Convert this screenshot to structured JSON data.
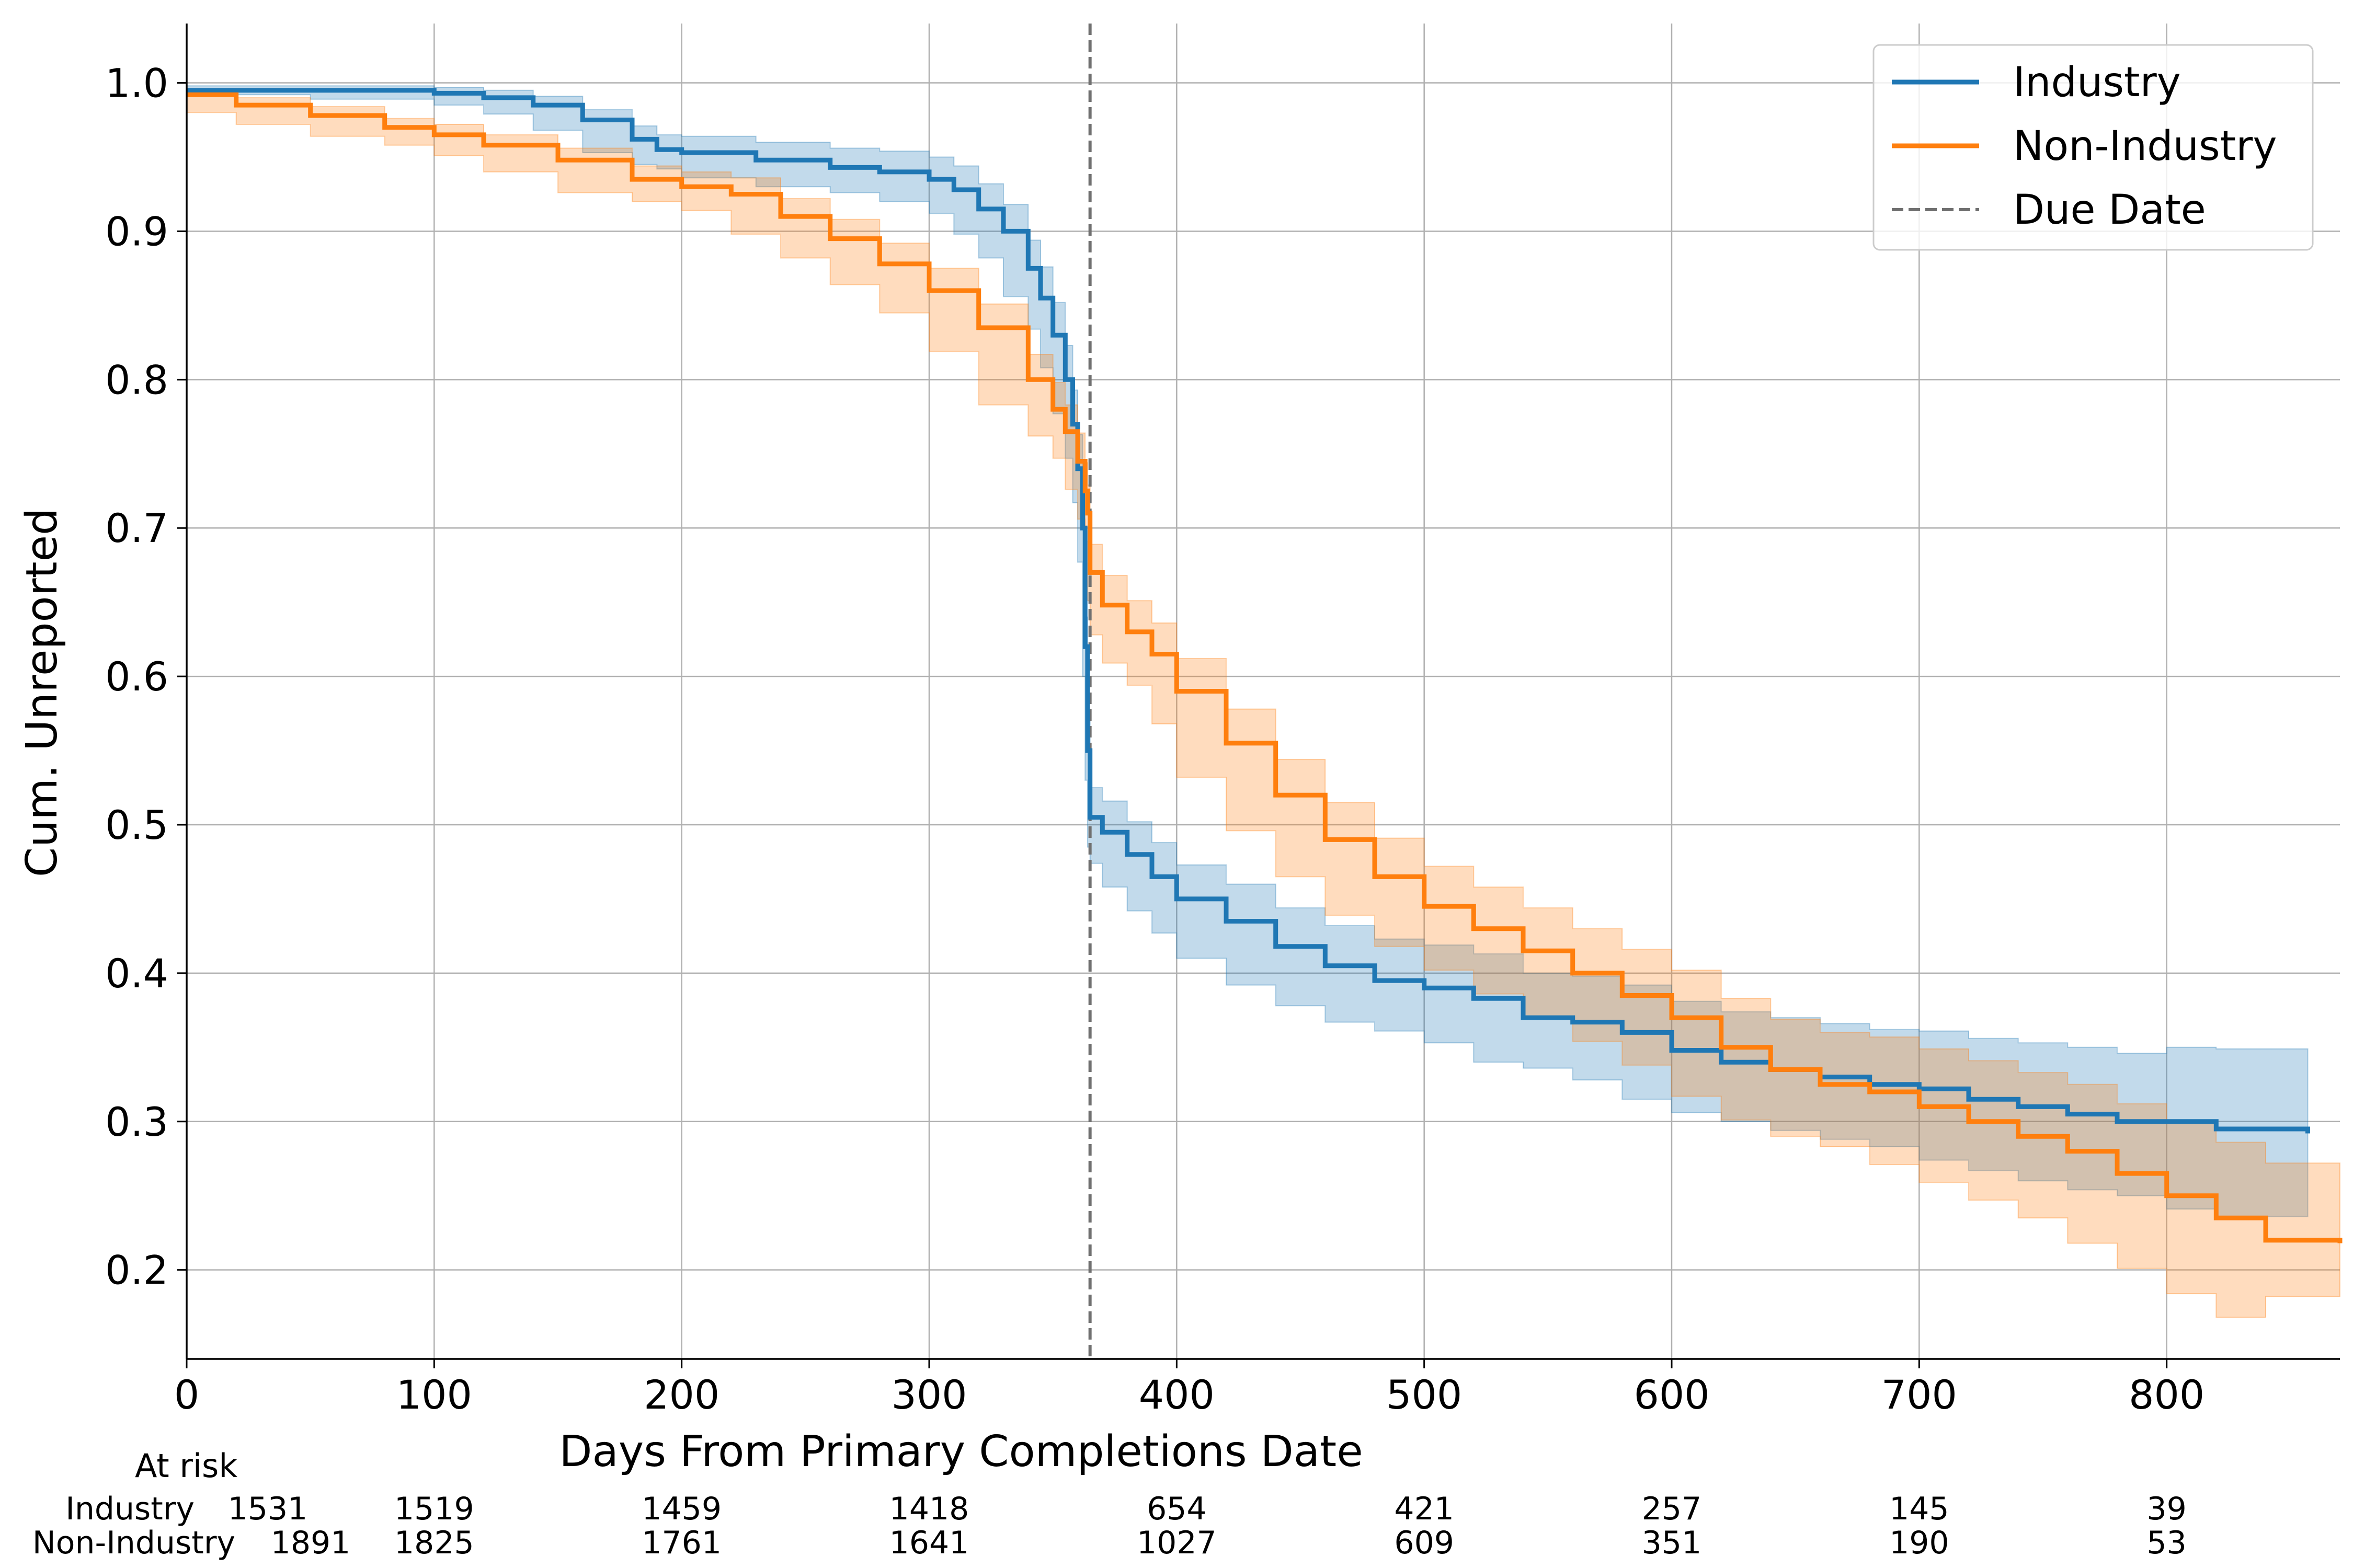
{
  "chart_data": {
    "type": "line",
    "title": "",
    "xlabel": "Days From Primary Completions Date",
    "ylabel": "Cum. Unreported",
    "xlim": [
      0,
      870
    ],
    "ylim": [
      0.14,
      1.04
    ],
    "x_ticks": [
      0,
      100,
      200,
      300,
      400,
      500,
      600,
      700,
      800
    ],
    "y_ticks": [
      0.2,
      0.3,
      0.4,
      0.5,
      0.6,
      0.7,
      0.8,
      0.9,
      1.0
    ],
    "x_tick_labels": [
      "0",
      "100",
      "200",
      "300",
      "400",
      "500",
      "600",
      "700",
      "800"
    ],
    "y_tick_labels": [
      "0.2",
      "0.3",
      "0.4",
      "0.5",
      "0.6",
      "0.7",
      "0.8",
      "0.9",
      "1.0"
    ],
    "grid": true,
    "legend_position": "top-right",
    "series": [
      {
        "name": "Industry",
        "color": "#1f77b4",
        "x": [
          0,
          50,
          100,
          120,
          140,
          160,
          180,
          190,
          200,
          230,
          260,
          280,
          300,
          310,
          320,
          330,
          340,
          345,
          350,
          355,
          358,
          360,
          362,
          363,
          364,
          365,
          370,
          380,
          390,
          400,
          420,
          440,
          460,
          480,
          500,
          520,
          540,
          560,
          580,
          600,
          620,
          640,
          660,
          680,
          700,
          720,
          740,
          760,
          780,
          800,
          820,
          857
        ],
        "y": [
          0.995,
          0.995,
          0.993,
          0.99,
          0.985,
          0.975,
          0.962,
          0.955,
          0.953,
          0.948,
          0.943,
          0.94,
          0.935,
          0.928,
          0.915,
          0.9,
          0.875,
          0.855,
          0.83,
          0.8,
          0.77,
          0.74,
          0.7,
          0.62,
          0.55,
          0.505,
          0.495,
          0.48,
          0.465,
          0.45,
          0.435,
          0.418,
          0.405,
          0.395,
          0.39,
          0.383,
          0.37,
          0.367,
          0.36,
          0.348,
          0.34,
          0.335,
          0.33,
          0.325,
          0.322,
          0.315,
          0.31,
          0.305,
          0.3,
          0.3,
          0.295,
          0.292
        ],
        "ci_lower": [
          0.992,
          0.992,
          0.989,
          0.985,
          0.979,
          0.968,
          0.953,
          0.945,
          0.942,
          0.936,
          0.93,
          0.926,
          0.92,
          0.912,
          0.898,
          0.882,
          0.856,
          0.834,
          0.808,
          0.777,
          0.747,
          0.717,
          0.677,
          0.6,
          0.53,
          0.485,
          0.474,
          0.458,
          0.442,
          0.427,
          0.41,
          0.392,
          0.378,
          0.367,
          0.361,
          0.353,
          0.34,
          0.336,
          0.328,
          0.315,
          0.306,
          0.3,
          0.294,
          0.288,
          0.283,
          0.274,
          0.267,
          0.26,
          0.254,
          0.25,
          0.241,
          0.236
        ],
        "ci_upper": [
          0.998,
          0.998,
          0.997,
          0.995,
          0.991,
          0.982,
          0.971,
          0.965,
          0.964,
          0.96,
          0.956,
          0.954,
          0.95,
          0.944,
          0.932,
          0.918,
          0.894,
          0.876,
          0.852,
          0.823,
          0.793,
          0.763,
          0.723,
          0.64,
          0.57,
          0.525,
          0.516,
          0.502,
          0.488,
          0.473,
          0.46,
          0.444,
          0.432,
          0.423,
          0.419,
          0.413,
          0.4,
          0.398,
          0.392,
          0.381,
          0.374,
          0.37,
          0.366,
          0.362,
          0.361,
          0.356,
          0.353,
          0.35,
          0.346,
          0.35,
          0.349,
          0.348
        ]
      },
      {
        "name": "Non-Industry",
        "color": "#ff7f0e",
        "x": [
          0,
          20,
          50,
          80,
          100,
          120,
          150,
          180,
          200,
          220,
          240,
          260,
          280,
          300,
          320,
          340,
          350,
          355,
          360,
          363,
          364,
          365,
          370,
          380,
          390,
          400,
          420,
          440,
          460,
          480,
          500,
          520,
          540,
          560,
          580,
          600,
          620,
          640,
          660,
          680,
          700,
          720,
          740,
          760,
          780,
          800,
          820,
          840,
          870
        ],
        "y": [
          0.992,
          0.985,
          0.978,
          0.97,
          0.965,
          0.958,
          0.948,
          0.935,
          0.93,
          0.925,
          0.91,
          0.895,
          0.878,
          0.86,
          0.835,
          0.8,
          0.78,
          0.765,
          0.745,
          0.725,
          0.71,
          0.67,
          0.648,
          0.63,
          0.615,
          0.59,
          0.555,
          0.52,
          0.49,
          0.465,
          0.445,
          0.43,
          0.415,
          0.4,
          0.385,
          0.37,
          0.35,
          0.335,
          0.325,
          0.32,
          0.31,
          0.3,
          0.29,
          0.28,
          0.265,
          0.25,
          0.235,
          0.22,
          0.218
        ],
        "ci_lower": [
          0.988,
          0.98,
          0.972,
          0.964,
          0.958,
          0.951,
          0.94,
          0.926,
          0.92,
          0.914,
          0.898,
          0.882,
          0.864,
          0.845,
          0.819,
          0.783,
          0.762,
          0.747,
          0.726,
          0.706,
          0.691,
          0.651,
          0.628,
          0.609,
          0.594,
          0.568,
          0.532,
          0.496,
          0.465,
          0.439,
          0.418,
          0.402,
          0.386,
          0.37,
          0.354,
          0.338,
          0.317,
          0.301,
          0.29,
          0.283,
          0.271,
          0.259,
          0.247,
          0.235,
          0.218,
          0.201,
          0.184,
          0.168,
          0.182
        ],
        "ci_upper": [
          0.996,
          0.99,
          0.984,
          0.976,
          0.972,
          0.965,
          0.956,
          0.944,
          0.94,
          0.936,
          0.922,
          0.908,
          0.892,
          0.875,
          0.851,
          0.817,
          0.798,
          0.783,
          0.764,
          0.744,
          0.729,
          0.689,
          0.668,
          0.651,
          0.636,
          0.612,
          0.578,
          0.544,
          0.515,
          0.491,
          0.472,
          0.458,
          0.444,
          0.43,
          0.416,
          0.402,
          0.383,
          0.369,
          0.36,
          0.357,
          0.349,
          0.341,
          0.333,
          0.325,
          0.312,
          0.299,
          0.286,
          0.272,
          0.258
        ]
      }
    ],
    "reference_lines": [
      {
        "name": "Due Date",
        "x": 365,
        "color": "#707070",
        "style": "dashed"
      }
    ],
    "legend": [
      {
        "label": "Industry",
        "color": "#1f77b4",
        "style": "solid"
      },
      {
        "label": "Non-Industry",
        "color": "#ff7f0e",
        "style": "solid"
      },
      {
        "label": "Due Date",
        "color": "#707070",
        "style": "dashed"
      }
    ],
    "at_risk": {
      "title": "At risk",
      "rows": [
        {
          "label": "Industry",
          "x": [
            0,
            100,
            200,
            300,
            400,
            500,
            600,
            700,
            800
          ],
          "counts": [
            "1531",
            "1519",
            "1459",
            "1418",
            "654",
            "421",
            "257",
            "145",
            "39"
          ]
        },
        {
          "label": "Non-Industry",
          "x": [
            0,
            100,
            200,
            300,
            400,
            500,
            600,
            700,
            800
          ],
          "counts": [
            "1891",
            "1825",
            "1761",
            "1641",
            "1027",
            "609",
            "351",
            "190",
            "53"
          ]
        }
      ]
    }
  }
}
